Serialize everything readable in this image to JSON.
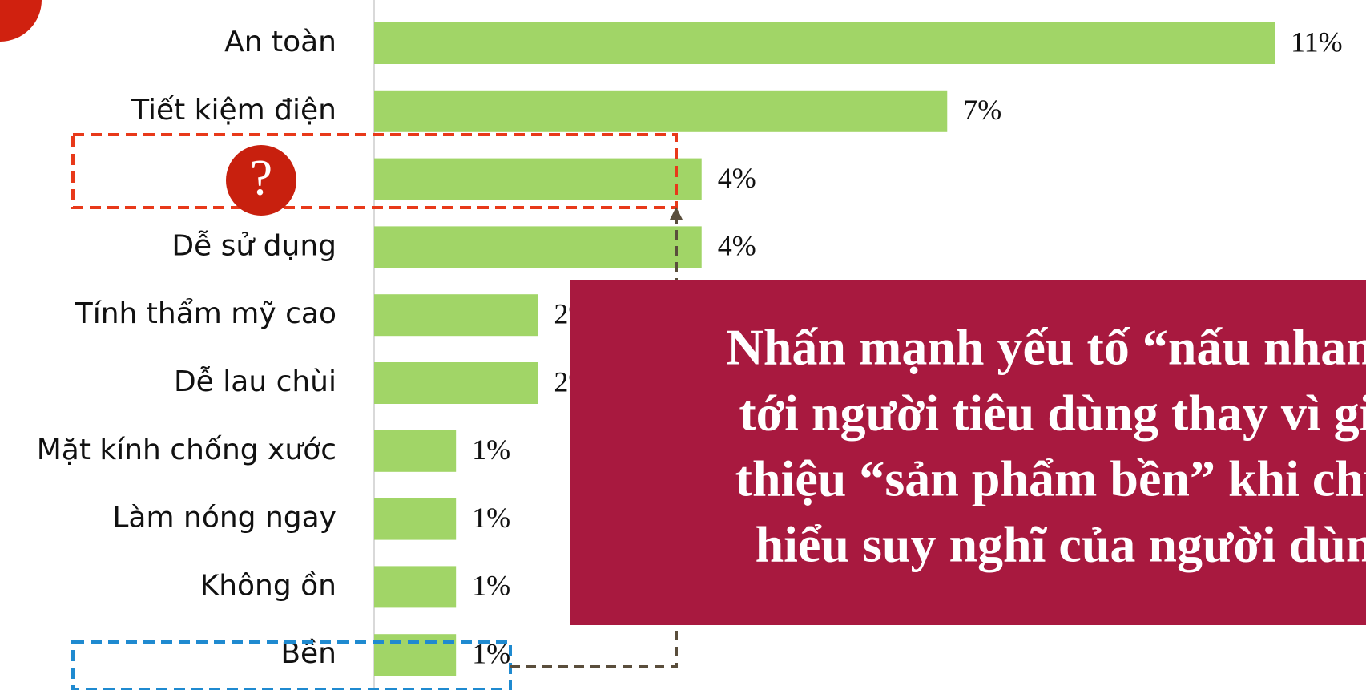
{
  "chart_data": {
    "type": "bar",
    "orientation": "horizontal",
    "categories": [
      "An toàn",
      "Tiết kiệm điện",
      null,
      "Dễ sử dụng",
      "Tính thẩm mỹ cao",
      "Dễ lau chùi",
      "Mặt kính chống xước",
      "Làm nóng ngay",
      "Không ồn",
      "Bền"
    ],
    "values": [
      11,
      7,
      4,
      4,
      2,
      2,
      1,
      1,
      1,
      1
    ],
    "value_labels": [
      "11%",
      "7%",
      "4%",
      "4%",
      "2%",
      "2%",
      "1%",
      "1%",
      "1%",
      "1%"
    ],
    "color": "#a1d567",
    "question_icon": "?",
    "annotation": [
      "Nhấn mạnh yếu tố “nấu nhanh”",
      "tới người tiêu dùng thay vì giới",
      "thiệu “sản phẩm bền” khi chưa",
      "hiểu suy nghĩ của người dùng"
    ],
    "annotation_color": "#a8193f"
  }
}
